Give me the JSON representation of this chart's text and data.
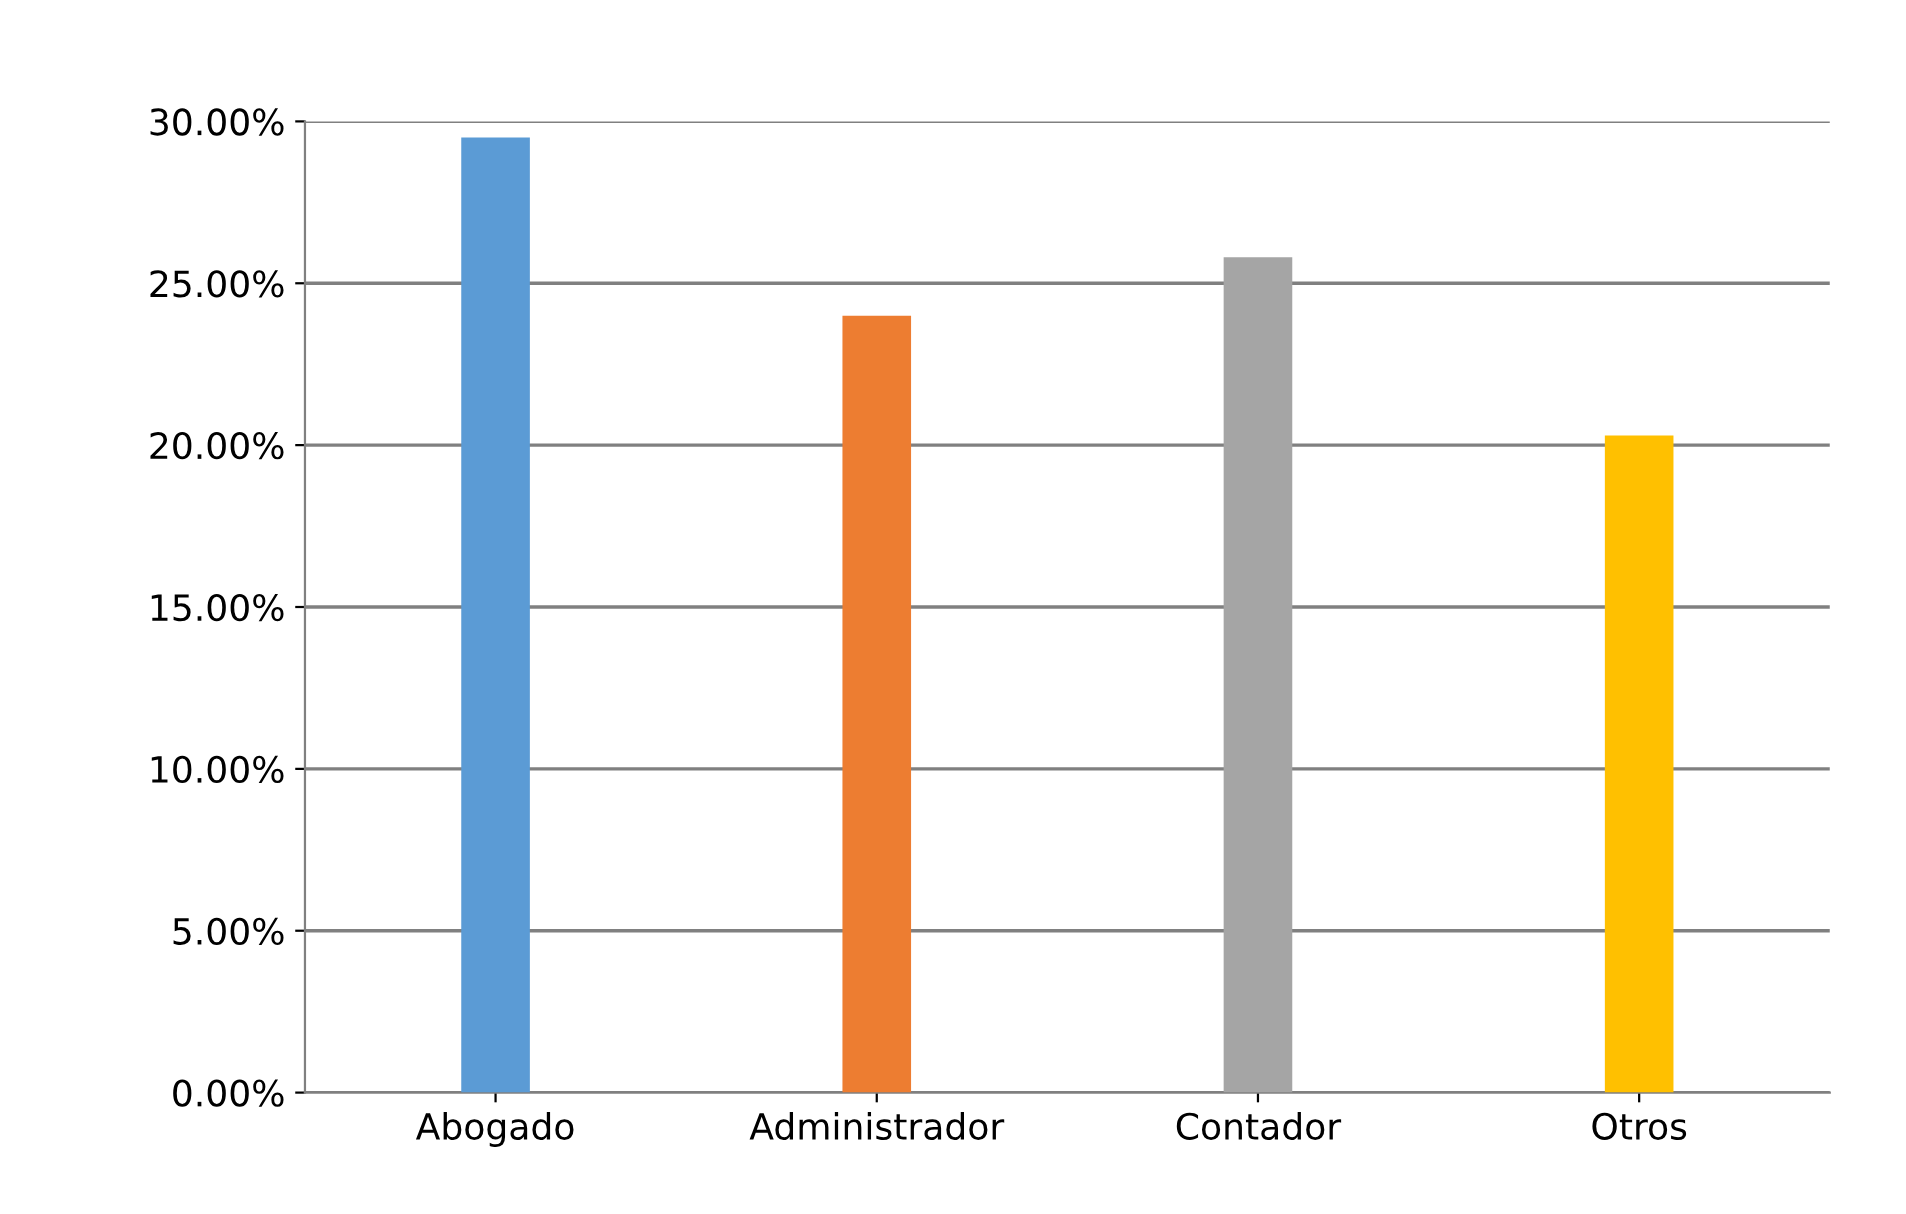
{
  "chart_data": {
    "type": "bar",
    "categories": [
      "Abogado",
      "Administrador",
      "Contador",
      "Otros"
    ],
    "values": [
      29.5,
      24.0,
      25.8,
      20.3
    ],
    "colors": [
      "#5b9bd5",
      "#ed7d31",
      "#a5a5a5",
      "#ffc000"
    ],
    "ylim": [
      0,
      30
    ],
    "yticks": [
      {
        "value": 0,
        "label": "0.00%"
      },
      {
        "value": 5,
        "label": "5.00%"
      },
      {
        "value": 10,
        "label": "10.00%"
      },
      {
        "value": 15,
        "label": "15.00%"
      },
      {
        "value": 20,
        "label": "20.00%"
      },
      {
        "value": 25,
        "label": "25.00%"
      },
      {
        "value": 30,
        "label": "30.00%"
      }
    ],
    "grid": "y",
    "legend": false
  }
}
